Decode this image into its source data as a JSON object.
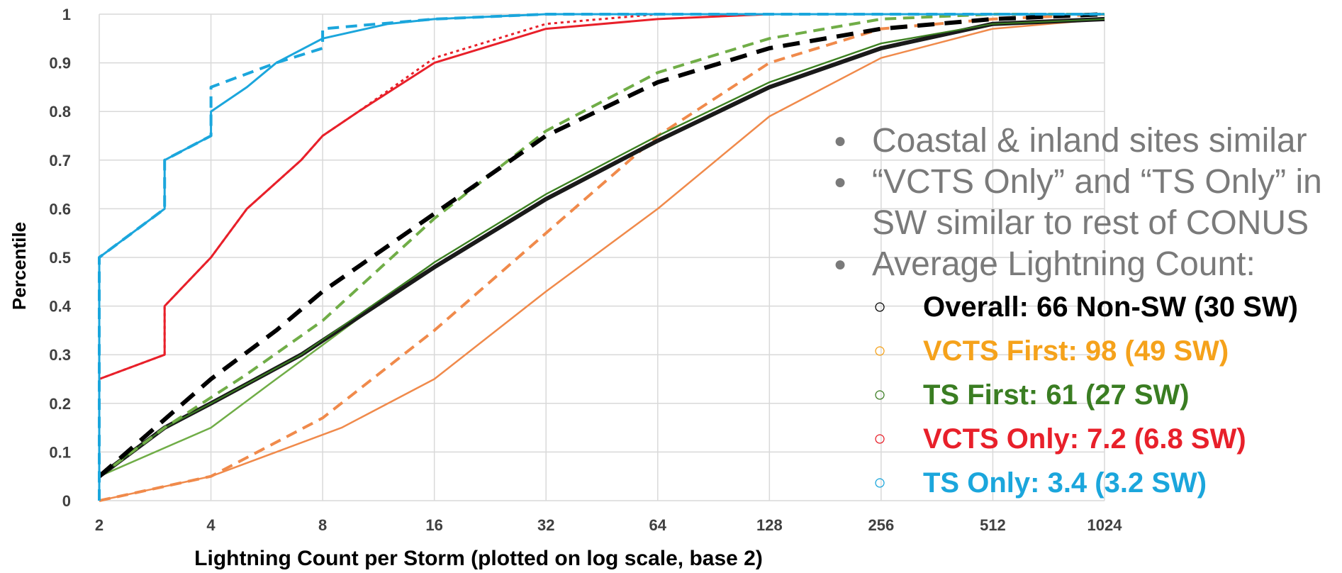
{
  "chart_data": {
    "type": "line",
    "title": "",
    "xlabel": "Lightning Count per Storm (plotted on log scale, base 2)",
    "ylabel": "Percentile",
    "x_scale": "log2",
    "xlim": [
      2,
      1024
    ],
    "ylim": [
      0,
      1
    ],
    "x_ticks": [
      "2",
      "4",
      "8",
      "16",
      "32",
      "64",
      "128",
      "256",
      "512",
      "1024"
    ],
    "y_ticks": [
      "0",
      "0.1",
      "0.2",
      "0.3",
      "0.4",
      "0.5",
      "0.6",
      "0.7",
      "0.8",
      "0.9",
      "1"
    ],
    "grid": true,
    "series": [
      {
        "color": "#f08a4b",
        "style": "solid",
        "width": 2.5,
        "points": [
          [
            2,
            0
          ],
          [
            4,
            0.05
          ],
          [
            6,
            0.1
          ],
          [
            9,
            0.15
          ],
          [
            16,
            0.25
          ],
          [
            32,
            0.43
          ],
          [
            64,
            0.6
          ],
          [
            128,
            0.79
          ],
          [
            256,
            0.91
          ],
          [
            512,
            0.97
          ],
          [
            1024,
            0.99
          ]
        ]
      },
      {
        "color": "#f08a4b",
        "style": "dashed",
        "width": 4,
        "points": [
          [
            2,
            0
          ],
          [
            4,
            0.05
          ],
          [
            8,
            0.17
          ],
          [
            16,
            0.35
          ],
          [
            32,
            0.55
          ],
          [
            64,
            0.75
          ],
          [
            128,
            0.9
          ],
          [
            256,
            0.97
          ],
          [
            512,
            0.99
          ],
          [
            1024,
            1
          ]
        ]
      },
      {
        "color": "#70ad47",
        "style": "solid",
        "width": 2.5,
        "points": [
          [
            2,
            0.05
          ],
          [
            4,
            0.15
          ],
          [
            6,
            0.25
          ],
          [
            8,
            0.32
          ],
          [
            16,
            0.49
          ],
          [
            32,
            0.63
          ],
          [
            64,
            0.75
          ],
          [
            128,
            0.86
          ],
          [
            256,
            0.94
          ],
          [
            512,
            0.98
          ],
          [
            1024,
            0.99
          ]
        ]
      },
      {
        "color": "#1a1a1a",
        "style": "solid",
        "width": 6,
        "points": [
          [
            2,
            0.05
          ],
          [
            3,
            0.15
          ],
          [
            4,
            0.2
          ],
          [
            7,
            0.3
          ],
          [
            16,
            0.48
          ],
          [
            32,
            0.62
          ],
          [
            64,
            0.74
          ],
          [
            128,
            0.85
          ],
          [
            256,
            0.93
          ],
          [
            512,
            0.98
          ],
          [
            1024,
            0.99
          ]
        ]
      },
      {
        "color": "#3a7d22",
        "style": "solid",
        "width": 2,
        "points": [
          [
            2,
            0.05
          ],
          [
            3,
            0.15
          ],
          [
            4,
            0.2
          ],
          [
            7,
            0.3
          ],
          [
            16,
            0.49
          ],
          [
            32,
            0.63
          ],
          [
            64,
            0.75
          ],
          [
            128,
            0.86
          ],
          [
            256,
            0.94
          ],
          [
            512,
            0.98
          ],
          [
            1024,
            0.99
          ]
        ]
      },
      {
        "color": "#70ad47",
        "style": "dashed",
        "width": 4,
        "points": [
          [
            2,
            0.05
          ],
          [
            3,
            0.15
          ],
          [
            5,
            0.26
          ],
          [
            8,
            0.37
          ],
          [
            16,
            0.58
          ],
          [
            32,
            0.76
          ],
          [
            64,
            0.88
          ],
          [
            128,
            0.95
          ],
          [
            256,
            0.99
          ],
          [
            512,
            1
          ],
          [
            1024,
            1
          ]
        ]
      },
      {
        "color": "#000000",
        "style": "dashed",
        "width": 6,
        "points": [
          [
            2,
            0.05
          ],
          [
            4,
            0.25
          ],
          [
            6,
            0.35
          ],
          [
            8,
            0.43
          ],
          [
            16,
            0.59
          ],
          [
            32,
            0.75
          ],
          [
            64,
            0.86
          ],
          [
            128,
            0.93
          ],
          [
            256,
            0.97
          ],
          [
            512,
            0.99
          ],
          [
            1024,
            1
          ]
        ]
      },
      {
        "color": "#e8202a",
        "style": "solid",
        "width": 3,
        "points": [
          [
            2,
            0.25
          ],
          [
            3,
            0.3
          ],
          [
            3,
            0.4
          ],
          [
            4,
            0.5
          ],
          [
            5,
            0.6
          ],
          [
            7,
            0.7
          ],
          [
            8,
            0.75
          ],
          [
            10,
            0.8
          ],
          [
            16,
            0.9
          ],
          [
            32,
            0.97
          ],
          [
            64,
            0.99
          ],
          [
            128,
            1
          ],
          [
            1024,
            1
          ]
        ]
      },
      {
        "color": "#e8202a",
        "style": "dotted",
        "width": 3,
        "points": [
          [
            2,
            0.25
          ],
          [
            3,
            0.3
          ],
          [
            3,
            0.4
          ],
          [
            4,
            0.5
          ],
          [
            5,
            0.6
          ],
          [
            7,
            0.7
          ],
          [
            8,
            0.75
          ],
          [
            10,
            0.8
          ],
          [
            16,
            0.91
          ],
          [
            32,
            0.98
          ],
          [
            64,
            1
          ],
          [
            1024,
            1
          ]
        ]
      },
      {
        "color": "#1ba6dc",
        "style": "solid",
        "width": 3,
        "points": [
          [
            2,
            0
          ],
          [
            2,
            0.5
          ],
          [
            3,
            0.6
          ],
          [
            3,
            0.7
          ],
          [
            4,
            0.75
          ],
          [
            4,
            0.8
          ],
          [
            5,
            0.85
          ],
          [
            6,
            0.9
          ],
          [
            8,
            0.95
          ],
          [
            12,
            0.98
          ],
          [
            16,
            0.99
          ],
          [
            32,
            1
          ],
          [
            1024,
            1
          ]
        ]
      },
      {
        "color": "#1ba6dc",
        "style": "dashed",
        "width": 4,
        "points": [
          [
            2,
            0
          ],
          [
            2,
            0.5
          ],
          [
            3,
            0.6
          ],
          [
            3,
            0.7
          ],
          [
            4,
            0.75
          ],
          [
            4,
            0.85
          ],
          [
            6,
            0.9
          ],
          [
            8,
            0.93
          ],
          [
            8,
            0.97
          ],
          [
            16,
            0.99
          ],
          [
            32,
            1
          ],
          [
            1024,
            1
          ]
        ]
      }
    ]
  },
  "notes": {
    "bullets": [
      "Coastal & inland sites similar",
      "“VCTS Only” and “TS Only” in SW similar to rest of CONUS",
      "Average Lightning Count:"
    ],
    "sub_bullets": [
      {
        "text": "Overall: 66 Non-SW (30 SW)",
        "color": "#000000"
      },
      {
        "text": "VCTS First: 98  (49 SW)",
        "color": "#f5a21b"
      },
      {
        "text": "TS First: 61 (27 SW)",
        "color": "#3a7d22"
      },
      {
        "text": "VCTS Only: 7.2 (6.8 SW)",
        "color": "#e8202a"
      },
      {
        "text": "TS Only: 3.4 (3.2 SW)",
        "color": "#1ba6dc"
      }
    ]
  }
}
